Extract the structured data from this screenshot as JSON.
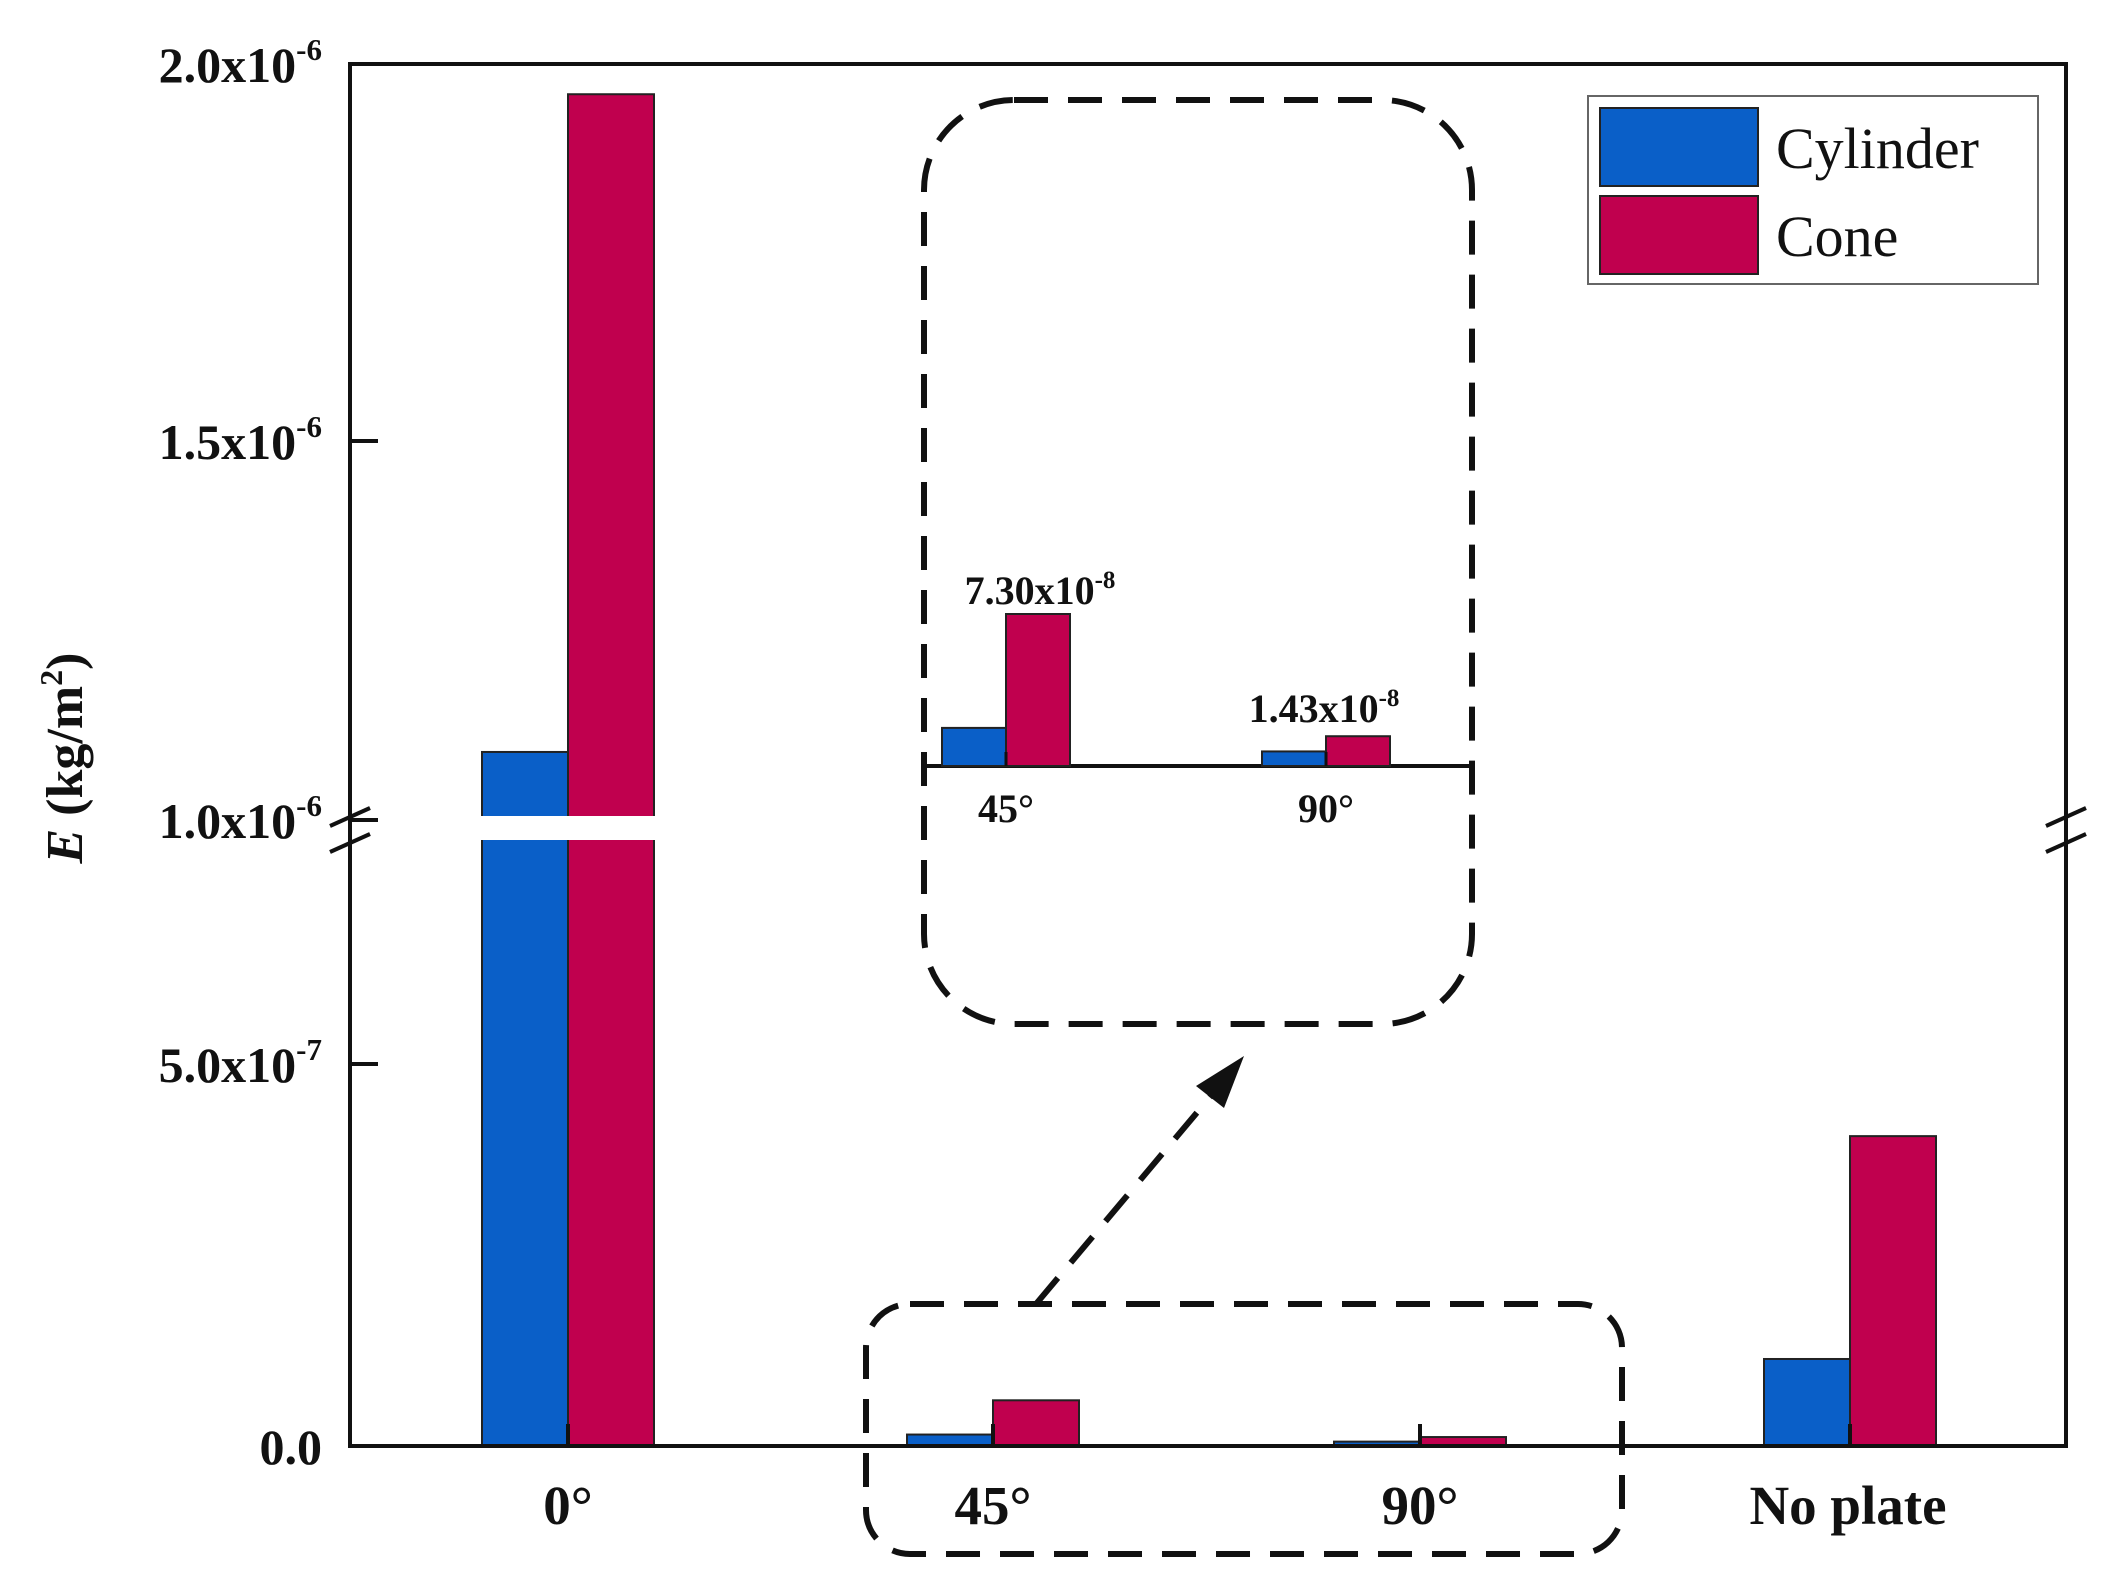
{
  "chart_data": {
    "type": "bar",
    "categories": [
      "0°",
      "45°",
      "90°",
      "No plate"
    ],
    "series": [
      {
        "name": "Cylinder",
        "values": [
          1.09e-06,
          1.83e-08,
          7e-09,
          1.39e-07
        ],
        "color": "#0a5fc8"
      },
      {
        "name": "Cone",
        "values": [
          1.96e-06,
          7.3e-08,
          1.43e-08,
          4.95e-07
        ],
        "color": "#c0004e"
      }
    ],
    "ylabel": {
      "italic": "E",
      "unit_start": "(kg/m",
      "unit_sup": "2",
      "unit_end": ")"
    },
    "y_axis_broken": true,
    "lower_segment_ylim": [
      0,
      1e-06
    ],
    "upper_segment_ylim": [
      1e-06,
      2e-06
    ],
    "y_ticks": [
      {
        "value": 0,
        "label": "0.0",
        "sup": ""
      },
      {
        "value": 5e-07,
        "label": "5.0x10",
        "sup": "-7"
      },
      {
        "value": 1e-06,
        "label": "1.0x10",
        "sup": "-6"
      },
      {
        "value": 1.5e-06,
        "label": "1.5x10",
        "sup": "-6"
      },
      {
        "value": 2e-06,
        "label": "2.0x10",
        "sup": "-6"
      }
    ],
    "legend": {
      "placement": "top-right",
      "entries": [
        "Cylinder",
        "Cone"
      ]
    },
    "grid": false,
    "inset": {
      "categories": [
        "45°",
        "90°"
      ],
      "annotations": [
        {
          "category": "45°",
          "label": "7.30x10",
          "sup": "-8"
        },
        {
          "category": "90°",
          "label": "1.43x10",
          "sup": "-8"
        }
      ]
    }
  }
}
